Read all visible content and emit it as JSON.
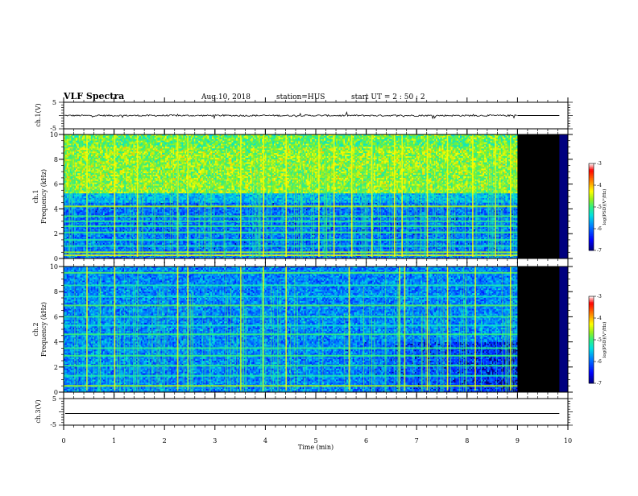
{
  "header": {
    "title": "VLF Spectra",
    "date": "Aug.10, 2018",
    "station": "station=HUS",
    "start": "start  UT =   2 : 50 : 2"
  },
  "colors": {
    "background": "#ffffff",
    "no_data": "#000000",
    "colormap": [
      "#00007f",
      "#0000ff",
      "#007fff",
      "#00e0e0",
      "#30f080",
      "#90f020",
      "#ffff00",
      "#ff8000",
      "#ff0000",
      "#ffffff"
    ]
  },
  "chart_data": [
    {
      "type": "line",
      "name": "ch1-waveform",
      "ylabel": "ch.1(V)",
      "ylim": [
        -5,
        5
      ],
      "yticks": [
        "5",
        "-5"
      ],
      "x_range_min": [
        0,
        10
      ],
      "data_end_min": 9.0,
      "baseline_V": 0,
      "amplitude_V": 0.6,
      "after_end_value_V": 0
    },
    {
      "type": "heatmap",
      "name": "ch1-spectrogram",
      "ylabel": "ch.1\nFrequency (kHz)",
      "ylim": [
        0,
        10
      ],
      "yticks": [
        "0",
        "2",
        "4",
        "6",
        "8",
        "10"
      ],
      "x_range_min": [
        0,
        10
      ],
      "data_end_min": 9.0,
      "colorbar": {
        "label": "log(PSD)(V²/Hz)",
        "range": [
          -7,
          -3
        ],
        "ticks": [
          "-3",
          "-4",
          "-5",
          "-6",
          "-7"
        ]
      },
      "emission_band_kHz": [
        5.2,
        10
      ],
      "emission_level": -4.8,
      "lines_kHz": [
        {
          "f": 0.25,
          "level": -4.4
        },
        {
          "f": 0.5,
          "level": -4.6
        },
        {
          "f": 1.0,
          "level": -5.2
        },
        {
          "f": 1.5,
          "level": -5.2
        },
        {
          "f": 2.1,
          "level": -5.0
        },
        {
          "f": 2.6,
          "level": -5.0
        },
        {
          "f": 3.0,
          "level": -5.1
        },
        {
          "f": 3.4,
          "level": -5.0
        },
        {
          "f": 4.2,
          "level": -4.6
        }
      ],
      "sferics_min": [
        0.45,
        1.0,
        1.45,
        2.25,
        2.45,
        3.5,
        3.95,
        4.4,
        5.05,
        5.35,
        5.7,
        6.1,
        6.55,
        6.7,
        7.2,
        7.6,
        8.1,
        8.55,
        8.85
      ]
    },
    {
      "type": "heatmap",
      "name": "ch2-spectrogram",
      "ylabel": "ch.2\nFrequency (kHz)",
      "ylim": [
        0,
        10
      ],
      "yticks": [
        "0",
        "2",
        "4",
        "6",
        "8",
        "10"
      ],
      "x_range_min": [
        0,
        10
      ],
      "data_end_min": 9.0,
      "colorbar": {
        "label": "log(PSD)(V²/Hz)",
        "range": [
          -7,
          -3
        ],
        "ticks": [
          "-3",
          "-4",
          "-5",
          "-6",
          "-7"
        ]
      },
      "lines_kHz": [
        {
          "f": 0.5,
          "level": -4.6
        },
        {
          "f": 1.3,
          "level": -5.2
        },
        {
          "f": 2.1,
          "level": -5.0
        },
        {
          "f": 2.9,
          "level": -5.0
        },
        {
          "f": 3.5,
          "level": -5.1
        },
        {
          "f": 4.6,
          "level": -5.0
        },
        {
          "f": 5.3,
          "level": -5.3
        },
        {
          "f": 6.0,
          "level": -5.1
        },
        {
          "f": 6.9,
          "level": -4.9
        },
        {
          "f": 7.6,
          "level": -5.3
        },
        {
          "f": 8.5,
          "level": -5.2
        },
        {
          "f": 9.5,
          "level": -4.9
        }
      ],
      "sferics_min": [
        0.45,
        1.0,
        2.25,
        2.45,
        3.5,
        3.95,
        4.4,
        5.65,
        6.65,
        6.75,
        7.2,
        7.6,
        8.15,
        8.85
      ]
    },
    {
      "type": "line",
      "name": "ch3-waveform",
      "ylabel": "ch.3(V)",
      "ylim": [
        -5,
        5
      ],
      "yticks": [
        "5",
        "-5"
      ],
      "x_range_min": [
        0,
        10
      ],
      "baseline_V": 0,
      "amplitude_V": 0
    }
  ],
  "xaxis": {
    "label": "Time  (min)",
    "ticks": [
      "0",
      "1",
      "2",
      "3",
      "4",
      "5",
      "6",
      "7",
      "8",
      "9",
      "10"
    ]
  }
}
